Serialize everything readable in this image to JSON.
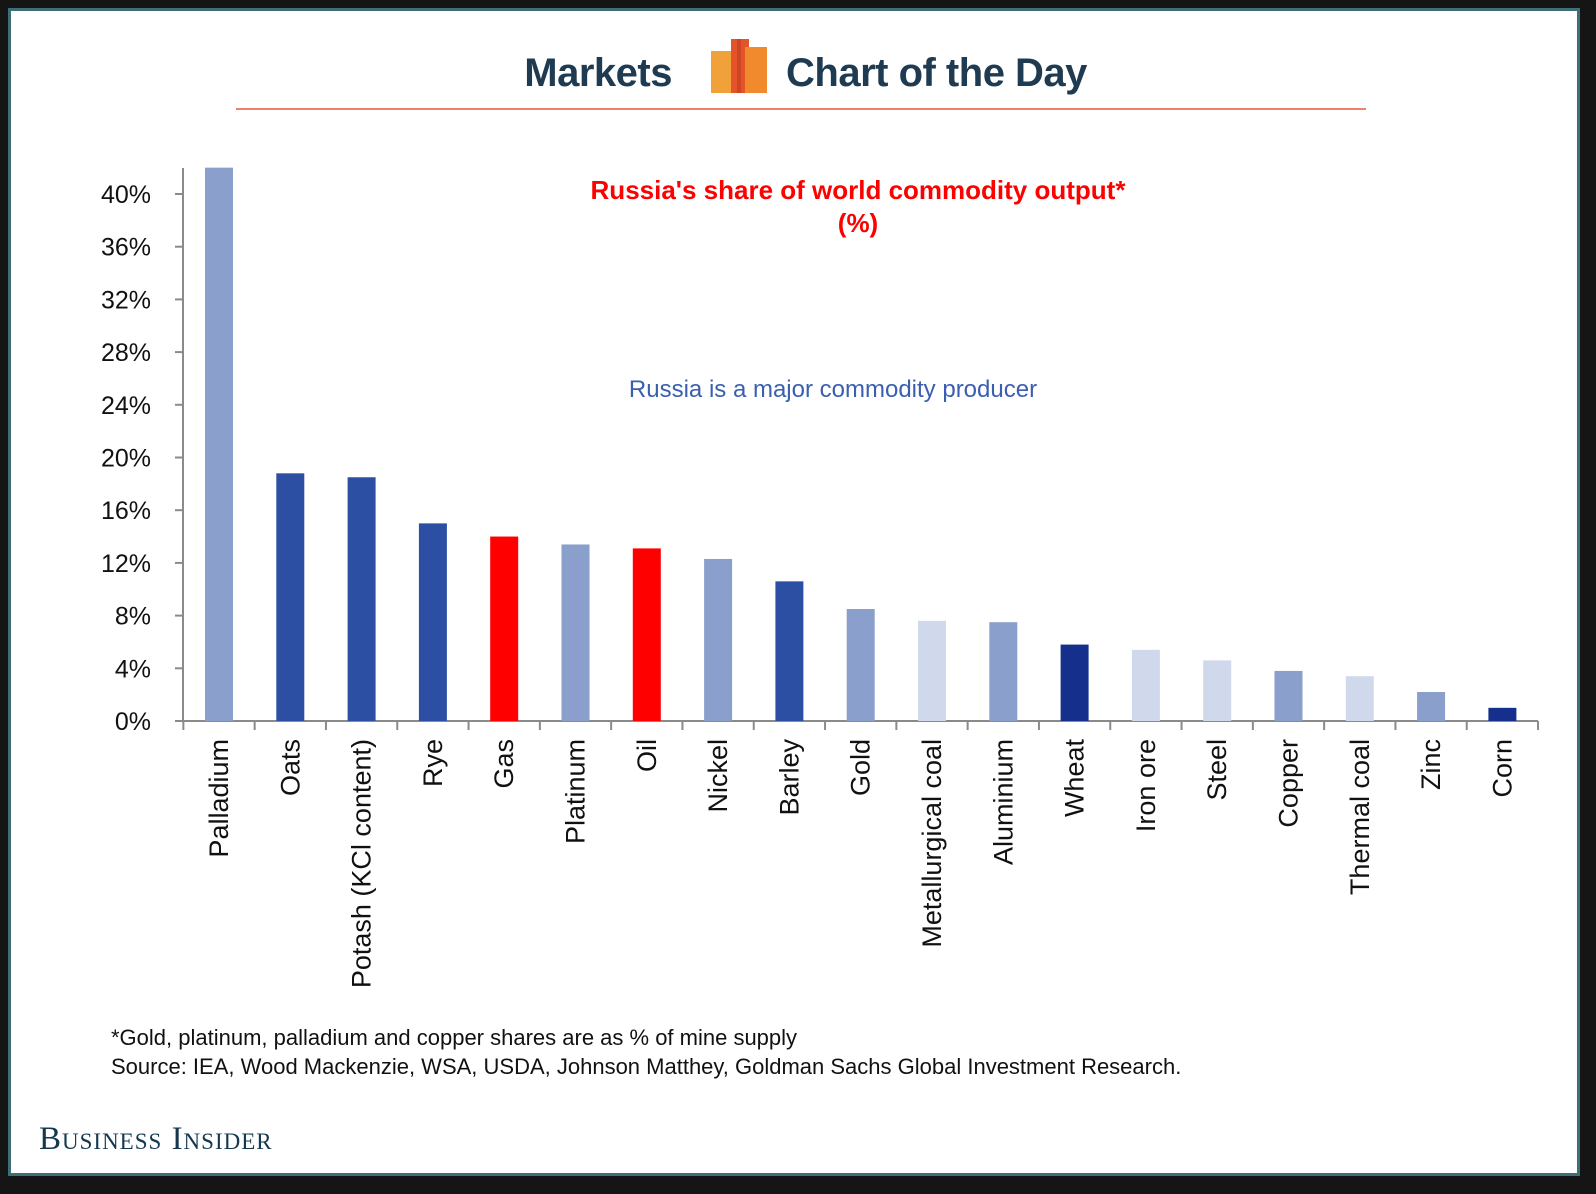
{
  "header": {
    "left_title": "Markets",
    "right_title": "Chart of the Day",
    "logo_icon": "bar-chart-logo-icon"
  },
  "colors": {
    "frame": "#3e6f76",
    "header_text": "#1f3b52",
    "header_rule": "#e9846b",
    "title": "#ff0000",
    "note": "#3a5fb0",
    "dark_blue": "#2d4fa3",
    "navy": "#14308c",
    "mid_blue": "#8a9fcb",
    "light_blue": "#d0d9ec",
    "red": "#ff0000"
  },
  "chart_data": {
    "type": "bar",
    "title": "Russia's share of world commodity output*",
    "subtitle": "(%)",
    "annotation": "Russia is a major commodity producer",
    "ylim": [
      0,
      40
    ],
    "yticks": [
      "0%",
      "4%",
      "8%",
      "12%",
      "16%",
      "20%",
      "24%",
      "28%",
      "32%",
      "36%",
      "40%"
    ],
    "categories": [
      "Palladium",
      "Oats",
      "Potash (KCl content)",
      "Rye",
      "Gas",
      "Platinum",
      "Oil",
      "Nickel",
      "Barley",
      "Gold",
      "Metallurgical coal",
      "Aluminium",
      "Wheat",
      "Iron ore",
      "Steel",
      "Copper",
      "Thermal coal",
      "Zinc",
      "Corn"
    ],
    "values": [
      42.0,
      18.8,
      18.5,
      15.0,
      14.0,
      13.4,
      13.1,
      12.3,
      10.6,
      8.5,
      7.6,
      7.5,
      5.8,
      5.4,
      4.6,
      3.8,
      3.4,
      2.2,
      1.0
    ],
    "bar_colors": [
      "#8a9fcb",
      "#2d4fa3",
      "#2d4fa3",
      "#2d4fa3",
      "#ff0000",
      "#8a9fcb",
      "#ff0000",
      "#8a9fcb",
      "#2d4fa3",
      "#8a9fcb",
      "#d0d9ec",
      "#8a9fcb",
      "#14308c",
      "#d0d9ec",
      "#d0d9ec",
      "#8a9fcb",
      "#d0d9ec",
      "#8a9fcb",
      "#14308c"
    ],
    "grid": false,
    "legend": "none"
  },
  "footnote": {
    "line1": "*Gold, platinum, palladium and copper shares are as % of mine supply",
    "line2": "Source: IEA, Wood Mackenzie, WSA, USDA, Johnson Matthey, Goldman Sachs Global Investment Research."
  },
  "brand": "Business Insider"
}
